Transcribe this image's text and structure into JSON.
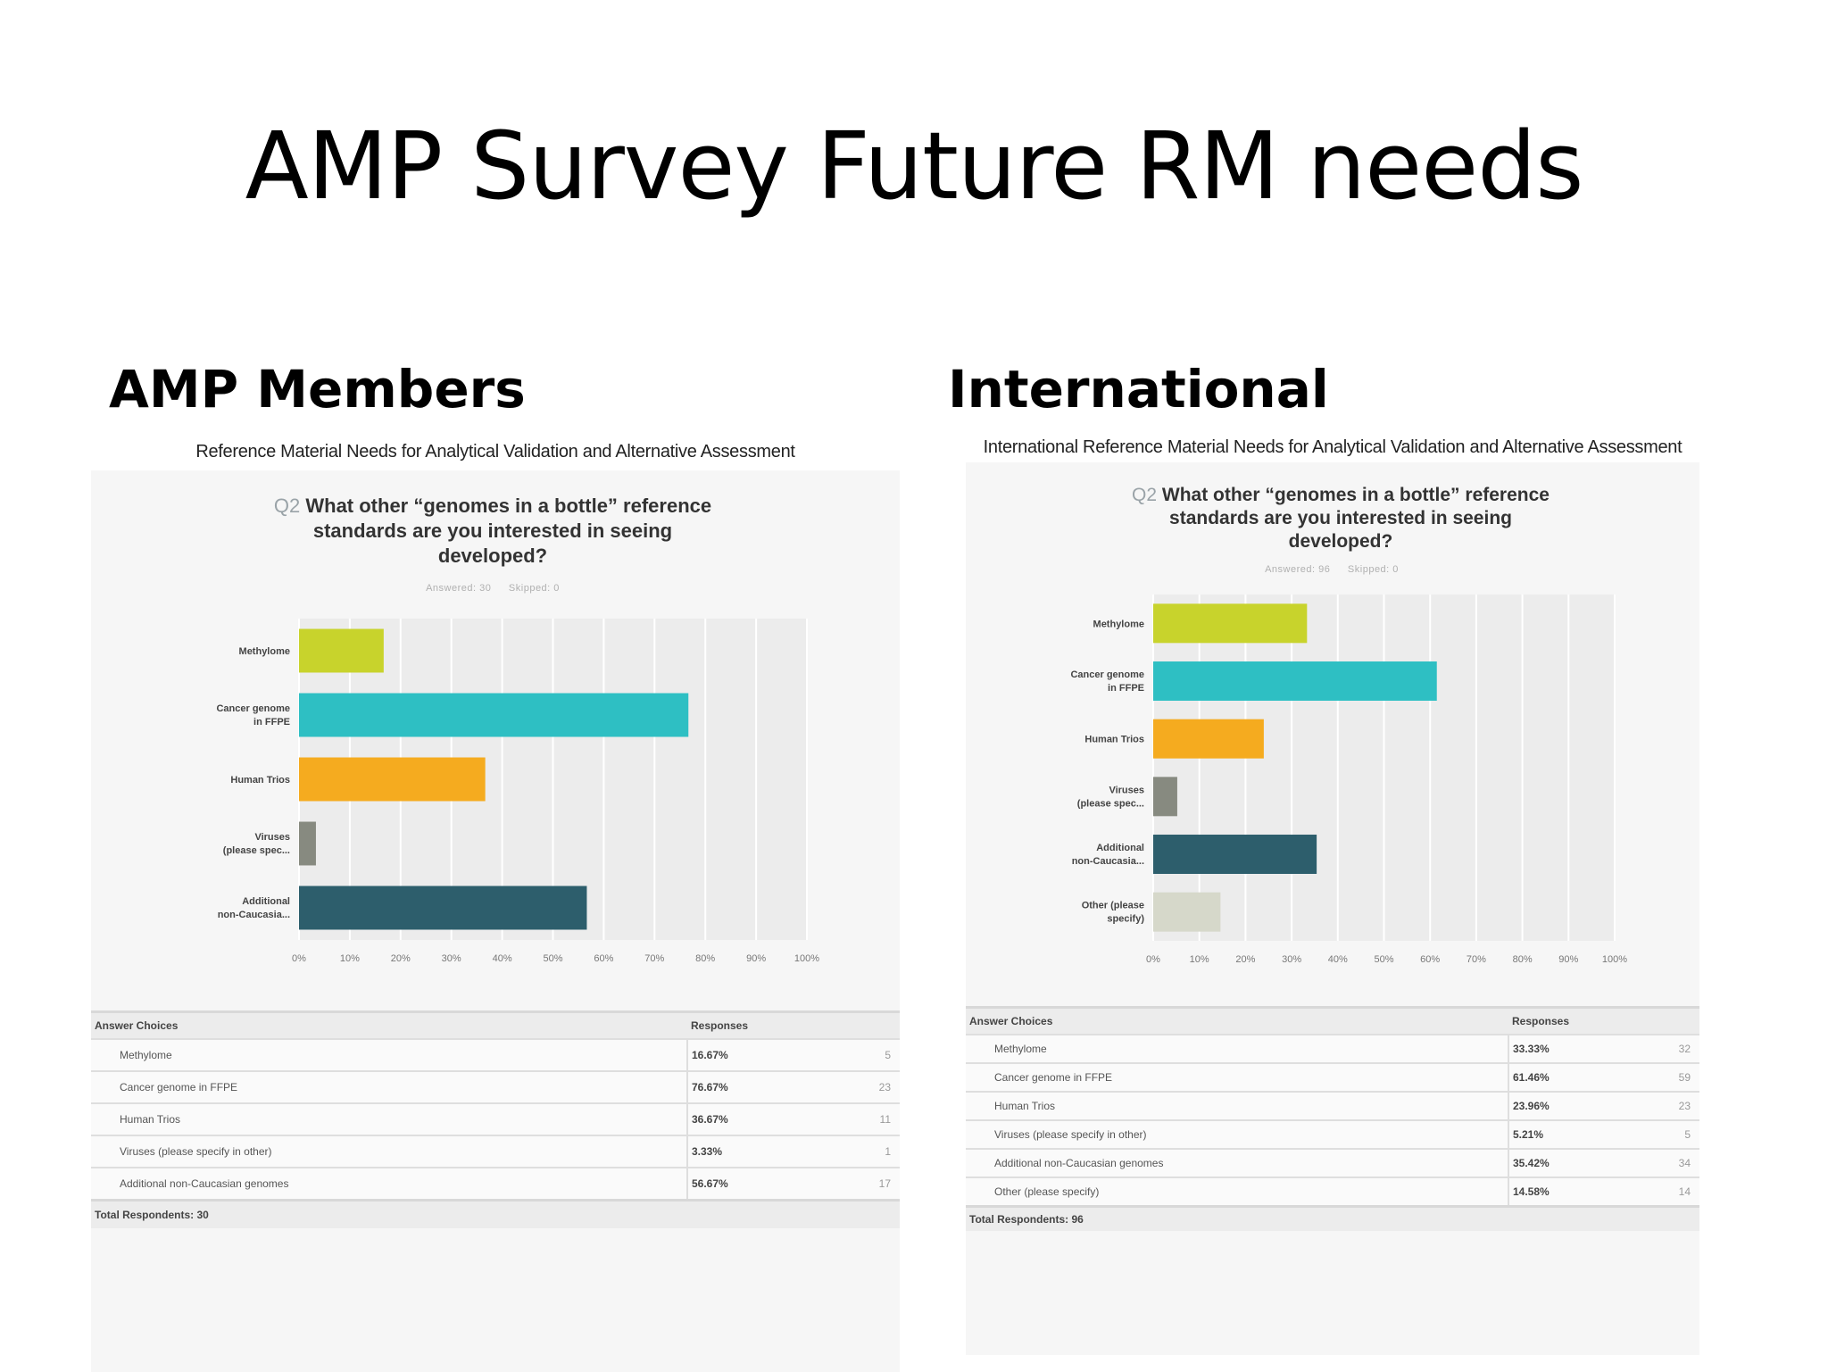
{
  "slide_title": "AMP Survey Future RM needs",
  "left_heading": "AMP Members",
  "right_heading": "International",
  "chart_data": [
    {
      "type": "bar",
      "orientation": "horizontal",
      "title": "Reference Material Needs for Analytical Validation and Alternative Assessment",
      "question_number": "Q2",
      "question": "What other “genomes in a bottle” reference standards are you interested in seeing developed?",
      "answered": "Answered: 30",
      "skipped": "Skipped: 0",
      "categories": [
        "Methylome",
        "Cancer genome in FFPE",
        "Human Trios",
        "Viruses (please spec...",
        "Additional non-Caucasia..."
      ],
      "values": [
        16.67,
        76.67,
        36.67,
        3.33,
        56.67
      ],
      "colors": [
        "#c8d32c",
        "#2ebfc3",
        "#f5ab1f",
        "#878a80",
        "#2d5e6c"
      ],
      "xticks": [
        "0%",
        "10%",
        "20%",
        "30%",
        "40%",
        "50%",
        "60%",
        "70%",
        "80%",
        "90%",
        "100%"
      ],
      "xlim": [
        0,
        100
      ],
      "grid": true,
      "table": {
        "headers": [
          "Answer Choices",
          "Responses"
        ],
        "rows": [
          {
            "choice": "Methylome",
            "pct": "16.67%",
            "count": "5"
          },
          {
            "choice": "Cancer genome in FFPE",
            "pct": "76.67%",
            "count": "23"
          },
          {
            "choice": "Human Trios",
            "pct": "36.67%",
            "count": "11"
          },
          {
            "choice": "Viruses (please specify in other)",
            "pct": "3.33%",
            "count": "1"
          },
          {
            "choice": "Additional non-Caucasian genomes",
            "pct": "56.67%",
            "count": "17"
          }
        ],
        "total": "Total Respondents: 30"
      }
    },
    {
      "type": "bar",
      "orientation": "horizontal",
      "title": "International Reference Material Needs for Analytical Validation and Alternative Assessment",
      "question_number": "Q2",
      "question": "What other “genomes in a bottle” reference standards are you interested in seeing developed?",
      "answered": "Answered: 96",
      "skipped": "Skipped: 0",
      "categories": [
        "Methylome",
        "Cancer genome in FFPE",
        "Human Trios",
        "Viruses (please spec...",
        "Additional non-Caucasia...",
        "Other (please specify)"
      ],
      "values": [
        33.33,
        61.46,
        23.96,
        5.21,
        35.42,
        14.58
      ],
      "colors": [
        "#c8d32c",
        "#2ebfc3",
        "#f5ab1f",
        "#878a80",
        "#2d5e6c",
        "#d6d8ca"
      ],
      "xticks": [
        "0%",
        "10%",
        "20%",
        "30%",
        "40%",
        "50%",
        "60%",
        "70%",
        "80%",
        "90%",
        "100%"
      ],
      "xlim": [
        0,
        100
      ],
      "grid": true,
      "table": {
        "headers": [
          "Answer Choices",
          "Responses"
        ],
        "rows": [
          {
            "choice": "Methylome",
            "pct": "33.33%",
            "count": "32"
          },
          {
            "choice": "Cancer genome in FFPE",
            "pct": "61.46%",
            "count": "59"
          },
          {
            "choice": "Human Trios",
            "pct": "23.96%",
            "count": "23"
          },
          {
            "choice": "Viruses (please specify in other)",
            "pct": "5.21%",
            "count": "5"
          },
          {
            "choice": "Additional non-Caucasian genomes",
            "pct": "35.42%",
            "count": "34"
          },
          {
            "choice": "Other (please specify)",
            "pct": "14.58%",
            "count": "14"
          }
        ],
        "total": "Total Respondents: 96"
      }
    }
  ]
}
